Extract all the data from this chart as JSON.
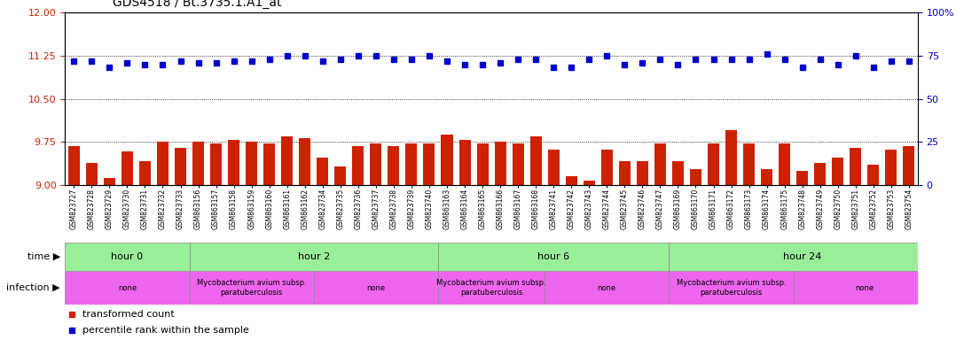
{
  "title": "GDS4518 / Bt.3735.1.A1_at",
  "samples": [
    "GSM823727",
    "GSM823728",
    "GSM823729",
    "GSM823730",
    "GSM823731",
    "GSM823732",
    "GSM823733",
    "GSM863156",
    "GSM863157",
    "GSM863158",
    "GSM863159",
    "GSM863160",
    "GSM863161",
    "GSM863162",
    "GSM823734",
    "GSM823735",
    "GSM823736",
    "GSM823737",
    "GSM823738",
    "GSM823739",
    "GSM823740",
    "GSM863163",
    "GSM863164",
    "GSM863165",
    "GSM863166",
    "GSM863167",
    "GSM863168",
    "GSM823741",
    "GSM823742",
    "GSM823743",
    "GSM823744",
    "GSM823745",
    "GSM823746",
    "GSM823747",
    "GSM863169",
    "GSM863170",
    "GSM863171",
    "GSM863172",
    "GSM863173",
    "GSM863174",
    "GSM863175",
    "GSM823748",
    "GSM823749",
    "GSM823750",
    "GSM823751",
    "GSM823752",
    "GSM823753",
    "GSM823754"
  ],
  "bar_values": [
    9.68,
    9.38,
    9.12,
    9.58,
    9.42,
    9.75,
    9.65,
    9.75,
    9.72,
    9.78,
    9.75,
    9.72,
    9.85,
    9.82,
    9.48,
    9.32,
    9.68,
    9.72,
    9.68,
    9.72,
    9.72,
    9.88,
    9.78,
    9.72,
    9.75,
    9.72,
    9.85,
    9.62,
    9.15,
    9.08,
    9.62,
    9.42,
    9.42,
    9.72,
    9.42,
    9.28,
    9.72,
    9.95,
    9.72,
    9.28,
    9.72,
    9.25,
    9.38,
    9.48,
    9.65,
    9.35,
    9.62,
    9.68
  ],
  "dot_values_pct": [
    72,
    72,
    68,
    71,
    70,
    70,
    72,
    71,
    71,
    72,
    72,
    73,
    75,
    75,
    72,
    73,
    75,
    75,
    73,
    73,
    75,
    72,
    70,
    70,
    71,
    73,
    73,
    68,
    68,
    73,
    75,
    70,
    71,
    73,
    70,
    73,
    73,
    73,
    73,
    76,
    73,
    68,
    73,
    70,
    75,
    68,
    72,
    72
  ],
  "bar_color": "#cc2200",
  "dot_color": "#0000cc",
  "ylim_left": [
    9.0,
    12.0
  ],
  "ylim_right": [
    0,
    100
  ],
  "yticks_left": [
    9.0,
    9.75,
    10.5,
    11.25,
    12.0
  ],
  "yticks_right": [
    0,
    25,
    50,
    75,
    100
  ],
  "time_groups": [
    {
      "label": "hour 0",
      "start": 0,
      "end": 6,
      "color": "#99ee99"
    },
    {
      "label": "hour 2",
      "start": 7,
      "end": 20,
      "color": "#99ee99"
    },
    {
      "label": "hour 6",
      "start": 21,
      "end": 33,
      "color": "#99ee99"
    },
    {
      "label": "hour 24",
      "start": 34,
      "end": 48,
      "color": "#99ee99"
    }
  ],
  "infection_groups": [
    {
      "label": "none",
      "start": 0,
      "end": 6,
      "color": "#ee66ee"
    },
    {
      "label": "Mycobacterium avium subsp.\nparatuberculosis",
      "start": 7,
      "end": 13,
      "color": "#ee66ee"
    },
    {
      "label": "none",
      "start": 14,
      "end": 20,
      "color": "#ee66ee"
    },
    {
      "label": "Mycobacterium avium subsp.\nparatuberculosis",
      "start": 21,
      "end": 26,
      "color": "#ee66ee"
    },
    {
      "label": "none",
      "start": 27,
      "end": 33,
      "color": "#ee66ee"
    },
    {
      "label": "Mycobacterium avium subsp.\nparatuberculosis",
      "start": 34,
      "end": 40,
      "color": "#ee66ee"
    },
    {
      "label": "none",
      "start": 41,
      "end": 48,
      "color": "#ee66ee"
    }
  ],
  "background_color": "#ffffff"
}
